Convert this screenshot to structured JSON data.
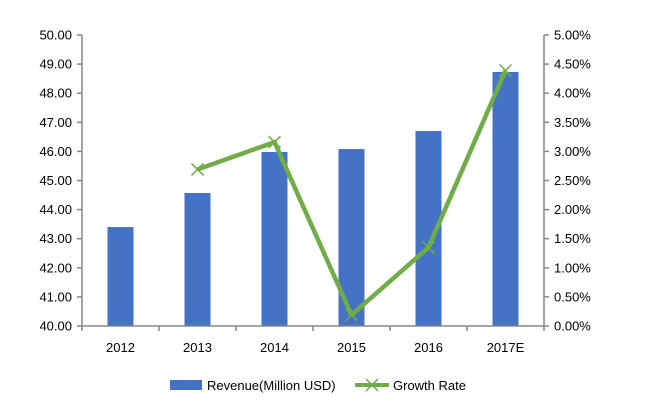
{
  "chart_data": {
    "type": "bar",
    "categories": [
      "2012",
      "2013",
      "2014",
      "2015",
      "2016",
      "2017E"
    ],
    "series": [
      {
        "name": "Revenue(Million USD)",
        "type": "bar",
        "axis": "left",
        "color": "#4472C4",
        "values": [
          43.4,
          44.57,
          45.98,
          46.08,
          46.7,
          48.73
        ]
      },
      {
        "name": "Growth Rate",
        "type": "line",
        "axis": "right",
        "color": "#70AD47",
        "values": [
          null,
          2.69,
          3.16,
          0.19,
          1.35,
          4.39
        ]
      }
    ],
    "ylim": [
      40,
      50
    ],
    "y2lim": [
      0,
      5
    ],
    "yticks": [
      "40.00",
      "41.00",
      "42.00",
      "43.00",
      "44.00",
      "45.00",
      "46.00",
      "47.00",
      "48.00",
      "49.00",
      "50.00"
    ],
    "y2ticks": [
      "0.00%",
      "0.50%",
      "1.00%",
      "1.50%",
      "2.00%",
      "2.50%",
      "3.00%",
      "3.50%",
      "4.00%",
      "4.50%",
      "5.00%"
    ],
    "title": "",
    "xlabel": "",
    "ylabel": "",
    "grid": false,
    "legend": "bottom"
  }
}
